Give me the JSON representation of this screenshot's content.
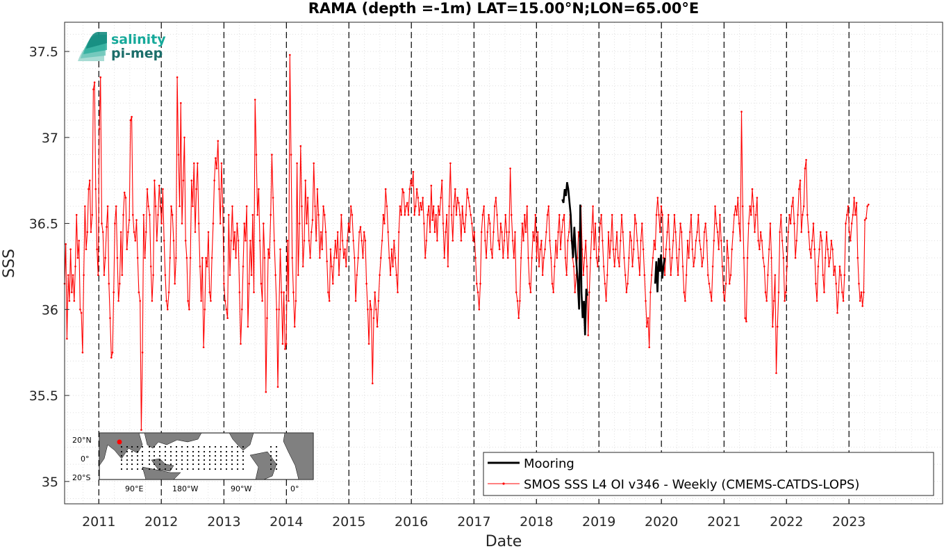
{
  "chart_data": {
    "type": "line",
    "title": "RAMA (depth =-1m) LAT=15.00°N;LON=65.00°E",
    "xlabel": "Date",
    "ylabel": "SSS",
    "xlim": [
      "2010-06-15",
      "2024-07-01"
    ],
    "ylim": [
      34.87,
      37.67
    ],
    "yticks": [
      "35",
      "35.5",
      "36",
      "36.5",
      "37",
      "37.5"
    ],
    "xticks": [
      "2011",
      "2012",
      "2013",
      "2014",
      "2015",
      "2016",
      "2017",
      "2018",
      "2019",
      "2020",
      "2021",
      "2022",
      "2023"
    ],
    "year_boundaries": [
      "2011",
      "2012",
      "2013",
      "2014",
      "2015",
      "2016",
      "2017",
      "2018",
      "2019",
      "2020",
      "2021",
      "2022",
      "2023"
    ],
    "grid": true,
    "legend_position": "bottom-right",
    "series": [
      {
        "name": "Mooring",
        "color": "#000000",
        "x": [
          "2018-06-01",
          "2018-06-08",
          "2018-06-15",
          "2018-06-22",
          "2018-06-29",
          "2018-07-06",
          "2018-07-13",
          "2018-07-20",
          "2018-07-27",
          "2018-08-03",
          "2018-08-10",
          "2018-08-17",
          "2018-08-24",
          "2018-08-31",
          "2018-09-07",
          "2018-09-14",
          "2018-09-21",
          "2018-09-28",
          "2018-10-05",
          "2018-10-12",
          "2018-10-19",
          "2018-10-26",
          "2019-11-25",
          "2019-12-02",
          "2019-12-09",
          "2019-12-16",
          "2019-12-23",
          "2019-12-30",
          "2020-01-06",
          "2020-01-13",
          "2020-01-20"
        ],
        "y": [
          36.64,
          36.62,
          36.7,
          36.66,
          36.74,
          36.7,
          36.62,
          36.55,
          36.4,
          36.3,
          36.48,
          36.35,
          36.25,
          36.15,
          36.0,
          36.61,
          36.1,
          35.95,
          36.05,
          35.85,
          36.12,
          36.08,
          36.15,
          36.28,
          36.1,
          36.3,
          36.22,
          36.32,
          36.18,
          36.25,
          36.3
        ],
        "breaks_after_index": [
          21
        ]
      },
      {
        "name": "SMOS SSS L4 OI v346 - Weekly (CMEMS-CATDS-LOPS)",
        "color": "#ff0000",
        "marker": "dot",
        "start": "2010-06-15",
        "step_days": 7,
        "y": [
          36.15,
          36.38,
          35.83,
          36.2,
          36.05,
          36.35,
          36.1,
          36.2,
          36.05,
          36.25,
          36.55,
          36.3,
          36.4,
          36.0,
          35.98,
          35.75,
          36.2,
          36.6,
          36.35,
          36.45,
          36.7,
          36.75,
          36.45,
          36.55,
          37.28,
          37.32,
          36.7,
          36.35,
          36.2,
          37.05,
          37.35,
          36.5,
          36.45,
          36.2,
          36.3,
          36.48,
          36.6,
          36.15,
          35.95,
          35.72,
          35.75,
          36.1,
          36.5,
          36.6,
          36.3,
          36.05,
          36.15,
          36.45,
          36.2,
          36.55,
          36.68,
          36.65,
          36.35,
          36.45,
          36.52,
          37.1,
          37.12,
          36.55,
          36.45,
          36.4,
          36.52,
          36.3,
          36.1,
          36.05,
          35.3,
          35.75,
          36.55,
          36.3,
          36.45,
          36.7,
          36.6,
          36.55,
          36.25,
          36.05,
          36.2,
          36.75,
          36.6,
          36.4,
          36.55,
          36.72,
          36.6,
          36.5,
          36.7,
          36.4,
          36.2,
          36.05,
          36.0,
          36.1,
          36.3,
          36.6,
          36.55,
          36.4,
          36.15,
          36.3,
          37.35,
          36.9,
          36.6,
          37.2,
          36.5,
          36.75,
          37.0,
          36.4,
          36.3,
          36.05,
          36.0,
          36.3,
          36.75,
          36.6,
          36.85,
          36.45,
          36.7,
          36.85,
          36.5,
          36.25,
          36.05,
          36.3,
          35.78,
          36.0,
          36.3,
          36.25,
          36.45,
          36.1,
          36.05,
          36.3,
          36.5,
          36.75,
          36.88,
          36.82,
          36.98,
          36.7,
          36.5,
          36.85,
          36.6,
          36.15,
          36.05,
          36.0,
          35.95,
          36.55,
          36.2,
          36.4,
          36.6,
          36.35,
          36.45,
          36.3,
          36.5,
          36.4,
          36.1,
          35.8,
          36.0,
          36.25,
          36.5,
          36.4,
          36.6,
          35.9,
          36.15,
          36.4,
          36.2,
          36.55,
          36.1,
          37.22,
          36.9,
          36.55,
          36.7,
          36.4,
          36.15,
          36.05,
          36.5,
          36.3,
          35.52,
          35.95,
          36.35,
          36.3,
          36.55,
          36.9,
          36.65,
          36.4,
          36.2,
          36.0,
          35.55,
          36.0,
          36.35,
          36.1,
          35.8,
          36.1,
          35.77,
          35.8,
          36.4,
          36.05,
          37.48,
          36.9,
          36.3,
          36.1,
          35.9,
          36.05,
          36.85,
          36.2,
          36.5,
          36.95,
          36.6,
          36.25,
          36.4,
          36.75,
          36.5,
          36.65,
          36.4,
          36.3,
          36.45,
          36.52,
          36.85,
          36.6,
          36.4,
          36.7,
          36.55,
          36.3,
          36.45,
          36.35,
          36.6,
          36.55,
          36.45,
          36.28,
          36.1,
          36.05,
          36.35,
          36.25,
          36.15,
          36.3,
          36.4,
          36.3,
          36.45,
          36.2,
          36.35,
          36.55,
          36.4,
          36.3,
          36.35,
          36.25,
          36.4,
          36.5,
          36.45,
          36.6,
          36.55,
          36.4,
          36.3,
          36.05,
          36.2,
          36.3,
          36.45,
          36.48,
          36.4,
          36.3,
          36.45,
          36.4,
          36.15,
          36.0,
          35.8,
          36.05,
          36.0,
          35.57,
          35.95,
          36.1,
          36.0,
          35.9,
          36.05,
          36.2,
          36.3,
          36.4,
          36.55,
          36.5,
          36.7,
          36.6,
          36.45,
          36.3,
          36.2,
          36.35,
          36.25,
          36.4,
          36.3,
          36.2,
          36.1,
          36.45,
          36.6,
          36.55,
          36.7,
          36.68,
          36.55,
          36.6,
          36.62,
          36.55,
          36.7,
          36.75,
          36.72,
          36.8,
          36.55,
          36.6,
          36.7,
          36.65,
          36.55,
          36.62,
          36.58,
          36.65,
          36.5,
          36.3,
          36.4,
          36.55,
          36.6,
          36.45,
          36.72,
          36.52,
          36.6,
          36.45,
          36.55,
          36.4,
          36.6,
          36.55,
          36.65,
          36.75,
          36.5,
          36.3,
          36.45,
          36.55,
          36.25,
          36.6,
          36.85,
          36.55,
          36.4,
          36.6,
          36.7,
          36.55,
          36.65,
          36.62,
          36.55,
          36.4,
          36.6,
          36.5,
          36.45,
          36.55,
          36.7,
          36.65,
          36.6,
          36.55,
          36.5,
          36.4,
          36.45,
          36.3,
          36.15,
          36.1,
          36.0,
          36.15,
          36.45,
          36.55,
          36.6,
          36.4,
          36.3,
          36.45,
          36.55,
          36.5,
          36.35,
          36.3,
          36.45,
          36.6,
          36.65,
          36.55,
          36.4,
          36.35,
          36.5,
          36.45,
          36.3,
          36.4,
          36.55,
          36.45,
          36.3,
          36.45,
          36.82,
          36.55,
          36.4,
          36.3,
          36.45,
          36.1,
          36.05,
          35.95,
          36.05,
          36.3,
          36.5,
          36.4,
          36.55,
          36.45,
          36.6,
          36.3,
          36.15,
          36.1,
          36.3,
          36.45,
          36.4,
          36.55,
          36.3,
          36.45,
          36.25,
          36.35,
          36.4,
          36.2,
          36.3,
          36.35,
          36.45,
          36.55,
          36.6,
          36.4,
          36.3,
          36.15,
          36.1,
          36.25,
          36.4,
          36.3,
          36.45,
          36.55,
          36.35,
          36.45,
          36.52,
          36.55,
          36.3,
          36.2,
          36.4,
          36.45,
          36.55,
          36.4,
          36.3,
          36.25,
          36.1,
          36.2,
          36.3,
          36.45,
          36.4,
          36.6,
          36.35,
          36.2,
          36.3,
          36.4,
          36.25,
          35.85,
          36.1,
          36.3,
          36.45,
          36.6,
          36.35,
          36.5,
          36.3,
          36.25,
          36.35,
          36.5,
          36.55,
          36.4,
          36.25,
          36.15,
          36.05,
          36.2,
          36.45,
          36.3,
          36.4,
          36.55,
          36.35,
          36.25,
          36.35,
          36.45,
          36.3,
          36.25,
          36.4,
          36.55,
          36.45,
          36.3,
          36.2,
          36.1,
          36.15,
          36.3,
          36.45,
          36.4,
          36.25,
          36.35,
          36.55,
          36.5,
          36.4,
          36.3,
          36.2,
          36.4,
          36.5,
          36.35,
          36.2,
          36.05,
          35.9,
          35.95,
          35.78,
          36.1,
          36.2,
          36.3,
          36.4,
          36.35,
          36.55,
          36.65,
          36.55,
          36.45,
          36.6,
          36.55,
          36.3,
          36.2,
          36.35,
          36.45,
          36.55,
          36.35,
          36.2,
          36.3,
          36.4,
          36.55,
          36.45,
          36.3,
          36.2,
          36.35,
          36.5,
          36.45,
          36.25,
          36.1,
          36.05,
          36.2,
          36.4,
          36.3,
          36.45,
          36.55,
          36.35,
          36.25,
          36.3,
          36.4,
          36.45,
          36.55,
          36.4,
          36.35,
          36.25,
          36.3,
          36.45,
          36.5,
          36.4,
          36.2,
          36.15,
          36.1,
          36.05,
          36.25,
          36.4,
          36.6,
          36.5,
          36.45,
          36.35,
          36.55,
          36.4,
          36.25,
          36.1,
          36.05,
          36.15,
          36.4,
          36.3,
          36.15,
          36.2,
          36.35,
          36.45,
          36.55,
          36.6,
          36.55,
          36.65,
          36.5,
          36.4,
          37.15,
          36.6,
          36.3,
          35.95,
          35.93,
          36.3,
          36.5,
          36.6,
          36.55,
          36.7,
          36.6,
          36.45,
          36.55,
          36.65,
          36.4,
          36.35,
          36.45,
          36.4,
          36.3,
          36.25,
          36.1,
          36.05,
          36.2,
          36.35,
          36.5,
          36.3,
          35.9,
          36.05,
          36.2,
          35.63,
          35.9,
          36.1,
          36.45,
          36.55,
          36.4,
          36.3,
          36.05,
          36.1,
          36.25,
          36.45,
          36.55,
          36.5,
          36.6,
          36.65,
          36.5,
          36.3,
          36.4,
          36.55,
          36.7,
          36.75,
          36.45,
          36.55,
          36.6,
          36.82,
          36.87,
          36.55,
          36.45,
          36.35,
          36.3,
          36.4,
          36.5,
          36.35,
          36.15,
          36.05,
          36.25,
          36.35,
          36.45,
          36.4,
          36.2,
          36.1,
          36.3,
          36.45,
          36.35,
          36.25,
          36.3,
          36.4,
          36.35,
          36.2,
          36.25,
          36.15,
          35.98,
          36.1,
          36.25,
          36.2,
          36.1,
          36.05,
          36.2,
          36.5,
          36.55,
          36.6,
          36.45,
          36.4,
          36.5,
          36.55,
          36.65,
          36.55,
          36.62,
          36.3,
          36.15,
          36.05,
          36.1,
          36.02,
          36.1,
          36.52,
          36.53,
          36.6,
          36.61
        ]
      }
    ],
    "annotations": [
      "salinity",
      "pi-mep"
    ]
  },
  "legend": {
    "mooring": "Mooring",
    "smos": "SMOS SSS L4 OI v346 - Weekly (CMEMS-CATDS-LOPS)"
  },
  "logo": {
    "line1": "salinity",
    "line2": "pi-mep",
    "color1": "#16a99a",
    "color2": "#1b6e6a"
  },
  "inset_map": {
    "lat_labels": [
      "20°N",
      "0°",
      "20°S"
    ],
    "lon_labels": [
      "90°E",
      "180°W",
      "90°W",
      "0°"
    ],
    "site_marker_color": "#ff0000"
  },
  "colors": {
    "mooring": "#000000",
    "smos": "#ff0000",
    "grid": "#c8c8c8"
  }
}
